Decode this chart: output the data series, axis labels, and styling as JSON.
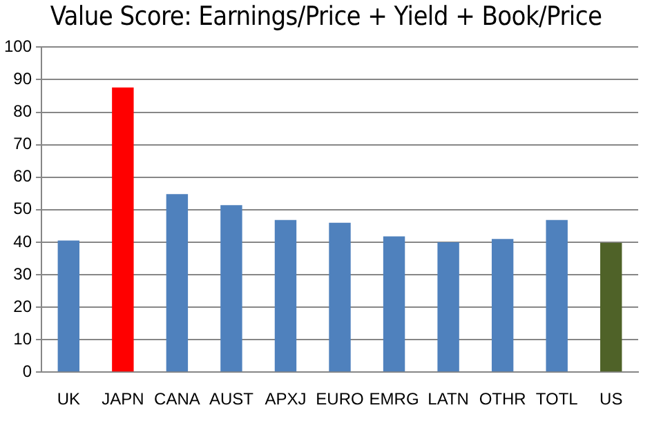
{
  "chart_data": {
    "type": "bar",
    "title": "Value Score: Earnings/Price + Yield + Book/Price",
    "categories": [
      "UK",
      "JAPN",
      "CANA",
      "AUST",
      "APXJ",
      "EURO",
      "EMRG",
      "LATN",
      "OTHR",
      "TOTL",
      "US"
    ],
    "values": [
      40.5,
      87.6,
      54.8,
      51.4,
      46.8,
      46,
      41.8,
      40,
      41,
      46.8,
      39.8
    ],
    "colors": [
      "#4f81bd",
      "#ff0000",
      "#4f81bd",
      "#4f81bd",
      "#4f81bd",
      "#4f81bd",
      "#4f81bd",
      "#4f81bd",
      "#4f81bd",
      "#4f81bd",
      "#4f6228"
    ],
    "ylim": [
      0,
      100
    ],
    "yticks": [
      0,
      10,
      20,
      30,
      40,
      50,
      60,
      70,
      80,
      90,
      100
    ],
    "grid": "y",
    "legend": false
  }
}
